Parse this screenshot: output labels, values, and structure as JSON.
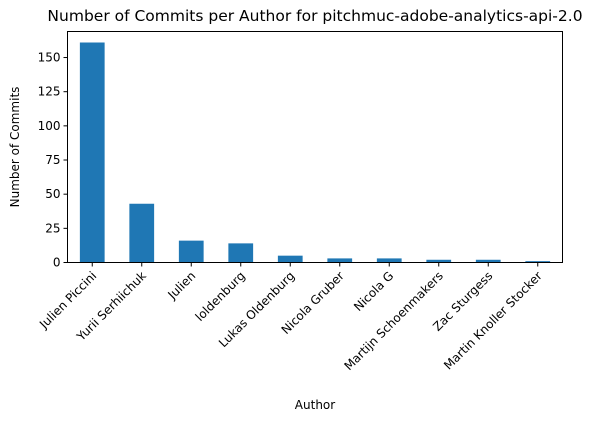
{
  "chart_data": {
    "type": "bar",
    "title": "Number of Commits per Author for pitchmuc-adobe-analytics-api-2.0",
    "xlabel": "Author",
    "ylabel": "Number of Commits",
    "categories": [
      "Julien Piccini",
      "Yurii Serhiichuk",
      "Julien",
      "loldenburg",
      "Lukas Oldenburg",
      "Nicola Gruber",
      "Nicola G",
      "Martijn Schoenmakers",
      "Zac Sturgess",
      "Martin Knoller Stocker"
    ],
    "values": [
      161,
      43,
      16,
      14,
      5,
      3,
      3,
      2,
      2,
      1
    ],
    "ylim": [
      0,
      169.05
    ],
    "yticks": [
      0,
      25,
      50,
      75,
      100,
      125,
      150
    ],
    "bar_color": "#1f77b4",
    "grid": false,
    "legend": "none"
  }
}
